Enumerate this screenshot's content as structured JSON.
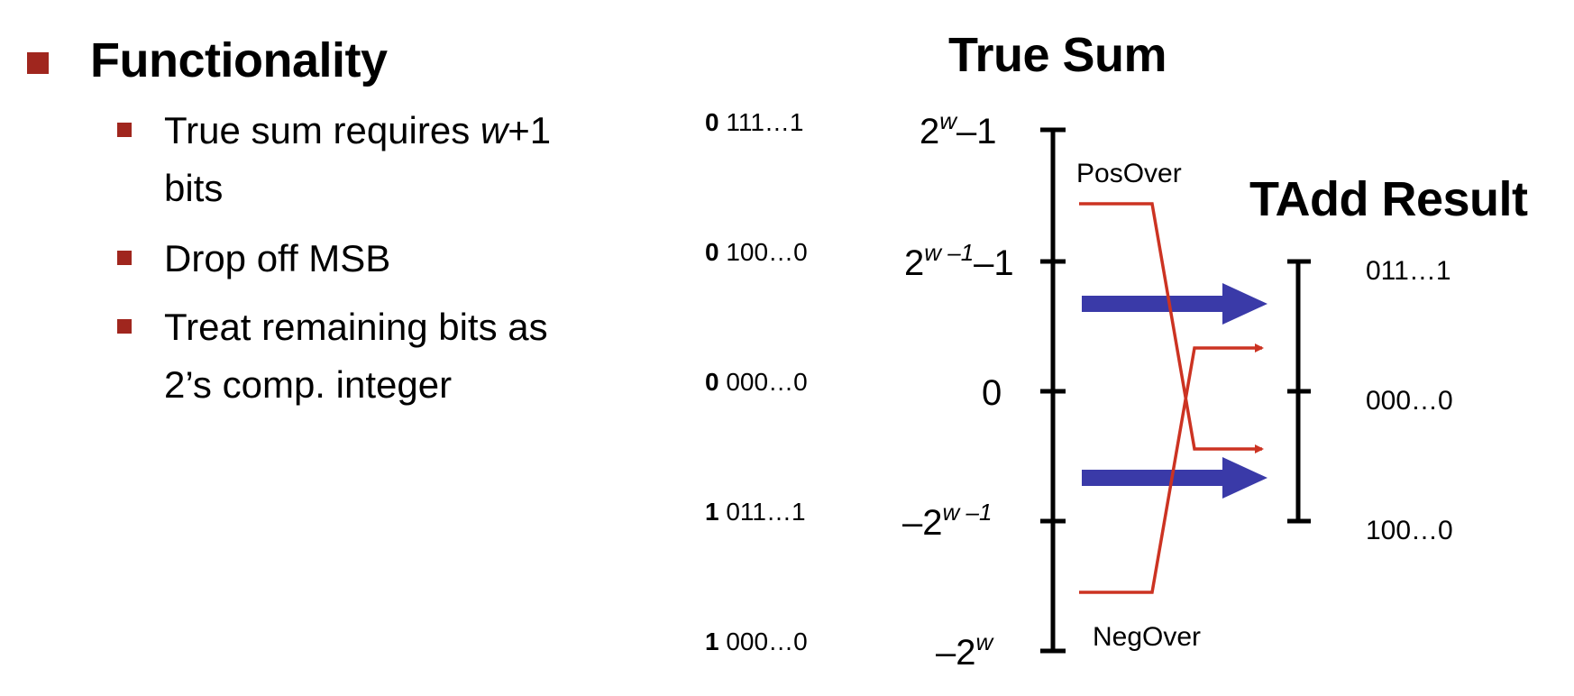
{
  "slide": {
    "main_bullet": "Functionality",
    "sub_bullets": [
      {
        "pre": "True sum requires ",
        "italic": "w",
        "post": "+1",
        "line2": "bits"
      },
      {
        "text": "Drop off MSB"
      },
      {
        "line1": "Treat remaining bits as",
        "line2": "2’s comp. integer"
      }
    ]
  },
  "bit_patterns": [
    {
      "msb": "0",
      "rest": "111…1"
    },
    {
      "msb": "0",
      "rest": "100…0"
    },
    {
      "msb": "0",
      "rest": "000…0"
    },
    {
      "msb": "1",
      "rest": "011…1"
    },
    {
      "msb": "1",
      "rest": "000…0"
    }
  ],
  "true_sum": {
    "title": "True Sum",
    "ticks": [
      {
        "base": "2",
        "sup": "w",
        "tail": "–1"
      },
      {
        "base": "2",
        "sup": "w –1",
        "tail": "–1"
      },
      {
        "base": "0",
        "sup": "",
        "tail": ""
      },
      {
        "base": "–2",
        "sup": "w –1",
        "tail": ""
      },
      {
        "base": "–2",
        "sup": "w",
        "tail": ""
      }
    ],
    "pos_over": "PosOver",
    "neg_over": "NegOver"
  },
  "tadd": {
    "title": "TAdd Result",
    "ticks": [
      "011…1",
      "000…0",
      "100…0"
    ]
  },
  "colors": {
    "bullet": "#a0261e",
    "overflow_line": "#cc3322",
    "arrow": "#3a3aa8",
    "axis": "#000000"
  }
}
